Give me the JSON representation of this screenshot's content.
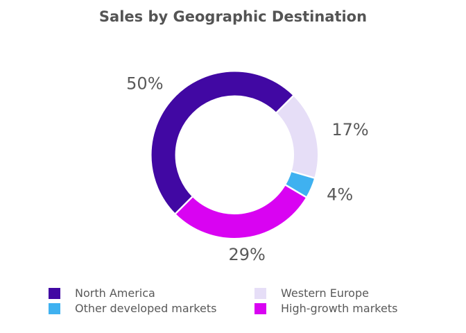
{
  "chart_data": {
    "type": "pie",
    "subtype": "donut",
    "title": "Sales by Geographic Destination",
    "unit": "%",
    "direction": "clockwise",
    "start_angle_deg": 225,
    "donut_hole_ratio": 0.72,
    "slices": [
      {
        "label": "North America",
        "value": 50,
        "display": "50%",
        "color": "#4108A3"
      },
      {
        "label": "Western Europe",
        "value": 17,
        "display": "17%",
        "color": "#E6DEF7"
      },
      {
        "label": "Other developed markets",
        "value": 4,
        "display": "4%",
        "color": "#3FB1F0"
      },
      {
        "label": "High-growth markets",
        "value": 29,
        "display": "29%",
        "color": "#D903F2"
      }
    ],
    "legend": {
      "position": "bottom-left",
      "columns": 2
    },
    "colors": {
      "label_text": "#595959",
      "title_text": "#545454",
      "separator": "#FFFFFF",
      "background": "#FFFFFF"
    }
  }
}
